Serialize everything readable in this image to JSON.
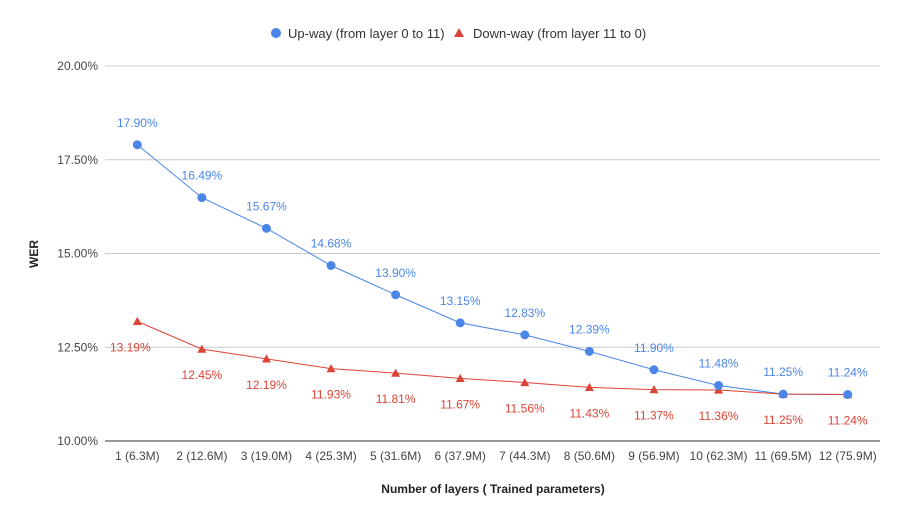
{
  "chart_data": {
    "type": "line",
    "title": "",
    "xlabel": "Number of layers ( Trained parameters)",
    "ylabel": "WER",
    "ylim": [
      10,
      20
    ],
    "yticks": [
      "10.00%",
      "12.50%",
      "15.00%",
      "17.50%",
      "20.00%"
    ],
    "ytick_values": [
      10,
      12.5,
      15,
      17.5,
      20
    ],
    "grid": true,
    "legend_position": "top",
    "categories": [
      "1 (6.3M)",
      "2 (12.6M)",
      "3 (19.0M)",
      "4 (25.3M)",
      "5 (31.6M)",
      "6 (37.9M)",
      "7 (44.3M)",
      "8 (50.6M)",
      "9 (56.9M)",
      "10 (62.3M)",
      "11 (69.5M)",
      "12 (75.9M)"
    ],
    "series": [
      {
        "name": "Up-way (from layer 0 to 11)",
        "color": "#4a86e8",
        "marker": "circle",
        "values": [
          17.9,
          16.49,
          15.67,
          14.68,
          13.9,
          13.15,
          12.83,
          12.39,
          11.9,
          11.48,
          11.25,
          11.24
        ],
        "labels": [
          "17.90%",
          "16.49%",
          "15.67%",
          "14.68%",
          "13.90%",
          "13.15%",
          "12.83%",
          "12.39%",
          "11.90%",
          "11.48%",
          "11.25%",
          "11.24%"
        ]
      },
      {
        "name": "Down-way (from layer 11 to 0)",
        "color": "#db4437",
        "marker": "triangle",
        "values": [
          13.19,
          12.45,
          12.19,
          11.93,
          11.81,
          11.67,
          11.56,
          11.43,
          11.37,
          11.36,
          11.25,
          11.24
        ],
        "labels": [
          "13.19%",
          "12.45%",
          "12.19%",
          "11.93%",
          "11.81%",
          "11.67%",
          "11.56%",
          "11.43%",
          "11.37%",
          "11.36%",
          "11.25%",
          "11.24%"
        ]
      }
    ]
  }
}
